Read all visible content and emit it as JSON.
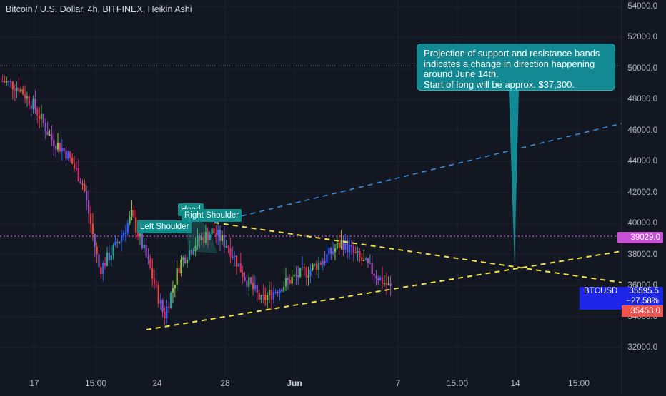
{
  "header": {
    "symbol_title": "Bitcoin / U.S. Dollar, 4h, BITFINEX, Heikin Ashi"
  },
  "annotation": {
    "lines": [
      "Projection of support and resistance bands",
      "indicates a change in direction happening",
      "around June 14th.",
      "Start of long will be approx. $37,300."
    ]
  },
  "pattern_labels": {
    "left_shoulder": "Left Shoulder",
    "head": "Head",
    "right_shoulder": "Right Shoulder"
  },
  "price_scale": {
    "ticks": [
      "54000.0",
      "52000.0",
      "50000.0",
      "48000.0",
      "46000.0",
      "44000.0",
      "42000.0",
      "40000.0",
      "38000.0",
      "36000.0",
      "34000.0",
      "32000.0"
    ],
    "alert_line": "39029.0",
    "symbol": "BTCUSD",
    "last_price": "35595.5",
    "change_pct": "−27.58%",
    "low_marker": "35453.0"
  },
  "time_scale": {
    "ticks": [
      "17",
      "15:00",
      "24",
      "28",
      "Jun",
      "7",
      "15:00",
      "14",
      "15:00"
    ]
  },
  "colors": {
    "background": "#131722",
    "callout": "#138a93",
    "support_line": "#f2e14a",
    "resistance_projection": "#3d8bd9",
    "alert_line": "#c94fd6",
    "btc_box": "#1d25e8",
    "low_marker": "#ef5350"
  },
  "chart_data": {
    "type": "candlestick",
    "title": "Bitcoin / U.S. Dollar, 4h, BITFINEX, Heikin Ashi",
    "ylim": [
      30000,
      55000
    ],
    "x_ticks": [
      "17",
      "15:00",
      "24",
      "28",
      "Jun",
      "7",
      "15:00",
      "14",
      "15:00"
    ],
    "close_path": [
      [
        "May 13",
        49200
      ],
      [
        "May 14",
        48800
      ],
      [
        "May 15",
        47500
      ],
      [
        "May 16",
        45500
      ],
      [
        "May 17",
        44500
      ],
      [
        "May 18",
        42500
      ],
      [
        "May 19",
        37000
      ],
      [
        "May 20",
        38500
      ],
      [
        "May 21",
        40500
      ],
      [
        "May 22",
        37500
      ],
      [
        "May 23",
        34000
      ],
      [
        "May 24",
        37500
      ],
      [
        "May 25",
        38800
      ],
      [
        "May 26",
        39500
      ],
      [
        "May 27",
        38500
      ],
      [
        "May 28",
        36500
      ],
      [
        "May 29",
        35000
      ],
      [
        "May 30",
        35800
      ],
      [
        "May 31",
        36500
      ],
      [
        "Jun 1",
        37000
      ],
      [
        "Jun 2",
        37800
      ],
      [
        "Jun 3",
        38800
      ],
      [
        "Jun 4",
        37800
      ],
      [
        "Jun 5",
        36800
      ],
      [
        "Jun 6",
        35800
      ]
    ],
    "trendlines": [
      {
        "name": "support",
        "from": [
          "May 23",
          33000
        ],
        "to": [
          "Jun 21",
          38200
        ],
        "style": "dashed yellow"
      },
      {
        "name": "resistance",
        "from": [
          "May 26",
          40200
        ],
        "to": [
          "Jun 21",
          36100
        ],
        "style": "dashed yellow"
      },
      {
        "name": "projection",
        "from": [
          "May 26",
          40200
        ],
        "to": [
          "Jun 21",
          46400
        ],
        "style": "dashed blue"
      }
    ],
    "alert_price": 39029.0,
    "last_price": 35595.5,
    "change_pct": -27.58,
    "low_marker": 35453.0,
    "projected_reversal": {
      "date": "Jun 14",
      "price": 37300
    }
  }
}
